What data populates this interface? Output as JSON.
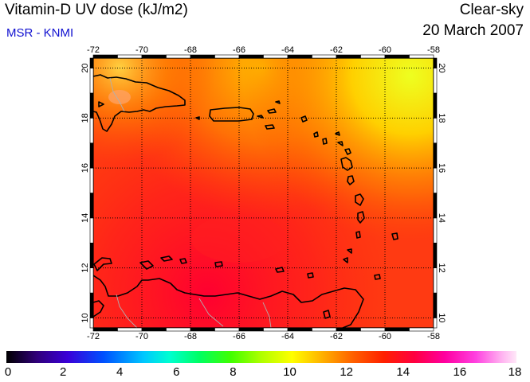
{
  "header": {
    "title": "Vitamin-D UV dose (kJ/m2)",
    "source": "MSR - KNMI",
    "condition": "Clear-sky",
    "date": "20 March 2007"
  },
  "map": {
    "lon_range": [
      -72,
      -58
    ],
    "lat_range": [
      9.6,
      20.4
    ],
    "lon_ticks": [
      "-72",
      "-70",
      "-68",
      "-66",
      "-64",
      "-62",
      "-60",
      "-58"
    ],
    "lat_ticks": [
      "10",
      "12",
      "14",
      "16",
      "18",
      "20"
    ],
    "gridlines": true,
    "coastline_color": "#000000",
    "border_color": "#b0b0b0"
  },
  "colorbar": {
    "min": 0,
    "max": 18,
    "labels": [
      "0",
      "2",
      "4",
      "6",
      "8",
      "10",
      "12",
      "14",
      "16",
      "18"
    ]
  },
  "colors": {
    "source_text": "#1010d0",
    "field_low": "#ff2a10",
    "field_high": "#e8ff20"
  }
}
